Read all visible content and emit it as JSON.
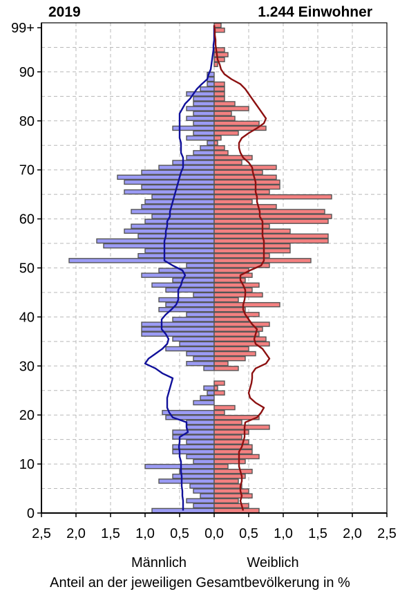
{
  "header": {
    "year": "2019",
    "population": "1.244 Einwohner"
  },
  "labels": {
    "male": "Männlich",
    "female": "Weiblich",
    "xaxis": "Anteil an der jeweiligen Gesamtbevölkerung in %"
  },
  "colors": {
    "male_bar": "#9b9bf5",
    "female_bar": "#f38080",
    "bar_stroke": "#555555",
    "male_line": "#10109a",
    "female_line": "#8c1010",
    "grid": "#b8b8b8"
  },
  "chart_data": {
    "type": "bar",
    "orientation": "horizontal",
    "title": "",
    "xlabel": "Anteil an der jeweiligen Gesamtbevölkerung in %",
    "ylabel": "",
    "xlim": [
      -2.5,
      2.5
    ],
    "ylim": [
      0,
      99
    ],
    "x_ticks": [
      "2,5",
      "2,0",
      "1,5",
      "1,0",
      "0,5",
      "0,0",
      "0,5",
      "1,0",
      "1,5",
      "2,0",
      "2,5"
    ],
    "y_ticks": [
      {
        "v": 0,
        "t": "0"
      },
      {
        "v": 10,
        "t": "10"
      },
      {
        "v": 20,
        "t": "20"
      },
      {
        "v": 30,
        "t": "30"
      },
      {
        "v": 40,
        "t": "40"
      },
      {
        "v": 50,
        "t": "50"
      },
      {
        "v": 60,
        "t": "60"
      },
      {
        "v": 70,
        "t": "70"
      },
      {
        "v": 80,
        "t": "80"
      },
      {
        "v": 90,
        "t": "90"
      },
      {
        "v": 99,
        "t": "99+"
      }
    ],
    "grid": true,
    "ages": [
      0,
      1,
      2,
      3,
      4,
      5,
      6,
      7,
      8,
      9,
      10,
      11,
      12,
      13,
      14,
      15,
      16,
      17,
      18,
      19,
      20,
      21,
      22,
      23,
      24,
      25,
      26,
      27,
      28,
      29,
      30,
      31,
      32,
      33,
      34,
      35,
      36,
      37,
      38,
      39,
      40,
      41,
      42,
      43,
      44,
      45,
      46,
      47,
      48,
      49,
      50,
      51,
      52,
      53,
      54,
      55,
      56,
      57,
      58,
      59,
      60,
      61,
      62,
      63,
      64,
      65,
      66,
      67,
      68,
      69,
      70,
      71,
      72,
      73,
      74,
      75,
      76,
      77,
      78,
      79,
      80,
      81,
      82,
      83,
      84,
      85,
      86,
      87,
      88,
      89,
      90,
      91,
      92,
      93,
      94,
      95,
      96,
      97,
      98,
      99
    ],
    "series": [
      {
        "name": "Männlich",
        "values": [
          0.9,
          0.3,
          0.4,
          0.2,
          0.3,
          0.35,
          0.8,
          0.6,
          0.5,
          1.0,
          0.3,
          0.4,
          0.6,
          0.6,
          0.4,
          0.6,
          0.6,
          0.4,
          0.4,
          0.7,
          0.75,
          0.0,
          0.3,
          0.2,
          0.1,
          0.15,
          0.0,
          0.0,
          0.0,
          0.15,
          0.4,
          0.3,
          0.4,
          0.7,
          0.5,
          0.6,
          1.05,
          1.05,
          1.05,
          0.6,
          0.4,
          0.8,
          0.7,
          0.8,
          0.3,
          0.7,
          0.9,
          0.6,
          1.05,
          0.8,
          0.4,
          2.1,
          1.1,
          1.0,
          1.6,
          1.7,
          1.1,
          1.3,
          1.2,
          1.0,
          0.9,
          1.2,
          1.05,
          1.0,
          0.9,
          1.3,
          1.05,
          1.3,
          1.4,
          1.05,
          0.8,
          0.6,
          0.4,
          0.3,
          0.2,
          0.1,
          0.4,
          0.3,
          0.6,
          0.3,
          0.4,
          0.3,
          0.4,
          0.3,
          0.3,
          0.4,
          0.2,
          0.1,
          0.1,
          0.1,
          0.0,
          0.0,
          0.0,
          0.0,
          0.0,
          0.0,
          0.0,
          0.0,
          0.0,
          0.0
        ]
      },
      {
        "name": "Weiblich",
        "values": [
          0.65,
          0.5,
          0.35,
          0.55,
          0.5,
          0.4,
          0.35,
          0.45,
          0.55,
          0.2,
          0.45,
          0.65,
          0.55,
          0.55,
          0.5,
          0.4,
          0.5,
          0.8,
          0.4,
          0.65,
          0.15,
          0.3,
          0.0,
          0.0,
          0.15,
          0.05,
          0.15,
          0.0,
          0.0,
          0.35,
          0.2,
          0.45,
          0.6,
          0.5,
          0.8,
          0.75,
          0.65,
          0.7,
          0.8,
          0.5,
          0.65,
          0.45,
          0.95,
          0.35,
          0.7,
          0.55,
          0.65,
          0.45,
          0.55,
          0.5,
          0.8,
          1.4,
          0.8,
          1.1,
          1.1,
          1.65,
          1.65,
          1.1,
          0.8,
          1.65,
          1.7,
          1.6,
          0.9,
          0.55,
          1.7,
          0.8,
          0.95,
          0.95,
          0.9,
          0.7,
          0.9,
          0.4,
          0.55,
          0.2,
          0.15,
          0.05,
          0.1,
          0.35,
          0.75,
          0.65,
          0.3,
          0.25,
          0.5,
          0.3,
          0.15,
          0.15,
          0.15,
          0.15,
          0.0,
          0.0,
          0.0,
          0.05,
          0.15,
          0.2,
          0.15,
          0.0,
          0.0,
          0.0,
          0.15,
          0.1
        ]
      },
      {
        "name": "",
        "side": "male",
        "values": [
          0.45,
          0.45,
          0.45,
          0.46,
          0.46,
          0.47,
          0.47,
          0.47,
          0.48,
          0.48,
          0.48,
          0.5,
          0.5,
          0.51,
          0.5,
          0.5,
          0.38,
          0.4,
          0.4,
          0.6,
          0.65,
          0.68,
          0.68,
          0.68,
          0.66,
          0.64,
          0.62,
          0.6,
          0.75,
          0.85,
          1.0,
          0.95,
          0.85,
          0.75,
          0.68,
          0.66,
          0.7,
          0.76,
          0.76,
          0.76,
          0.7,
          0.62,
          0.55,
          0.52,
          0.52,
          0.52,
          0.48,
          0.46,
          0.42,
          0.46,
          0.6,
          0.72,
          0.72,
          0.72,
          0.72,
          0.72,
          0.7,
          0.7,
          0.68,
          0.68,
          0.64,
          0.64,
          0.62,
          0.6,
          0.58,
          0.56,
          0.54,
          0.52,
          0.5,
          0.48,
          0.45,
          0.45,
          0.45,
          0.48,
          0.48,
          0.48,
          0.5,
          0.5,
          0.5,
          0.5,
          0.5,
          0.5,
          0.46,
          0.42,
          0.35,
          0.3,
          0.25,
          0.18,
          0.1,
          0.08,
          0.05,
          0.04,
          0.03,
          0.02,
          0.01,
          0.01,
          0.0,
          0.0,
          0.0,
          0.0
        ]
      },
      {
        "name": "",
        "side": "female",
        "values": [
          0.42,
          0.4,
          0.38,
          0.4,
          0.38,
          0.38,
          0.4,
          0.4,
          0.38,
          0.36,
          0.36,
          0.36,
          0.36,
          0.4,
          0.42,
          0.44,
          0.44,
          0.44,
          0.45,
          0.62,
          0.68,
          0.72,
          0.6,
          0.52,
          0.5,
          0.52,
          0.54,
          0.55,
          0.55,
          0.6,
          0.75,
          0.8,
          0.75,
          0.7,
          0.6,
          0.58,
          0.6,
          0.62,
          0.55,
          0.5,
          0.45,
          0.42,
          0.42,
          0.44,
          0.45,
          0.45,
          0.42,
          0.38,
          0.38,
          0.52,
          0.68,
          0.72,
          0.72,
          0.72,
          0.72,
          0.72,
          0.7,
          0.7,
          0.7,
          0.7,
          0.66,
          0.66,
          0.64,
          0.62,
          0.62,
          0.6,
          0.6,
          0.6,
          0.58,
          0.56,
          0.55,
          0.5,
          0.42,
          0.38,
          0.36,
          0.36,
          0.4,
          0.5,
          0.62,
          0.72,
          0.75,
          0.7,
          0.65,
          0.6,
          0.55,
          0.5,
          0.45,
          0.38,
          0.25,
          0.15,
          0.1,
          0.08,
          0.05,
          0.04,
          0.03,
          0.02,
          0.02,
          0.01,
          0.01,
          0.0
        ]
      }
    ]
  }
}
